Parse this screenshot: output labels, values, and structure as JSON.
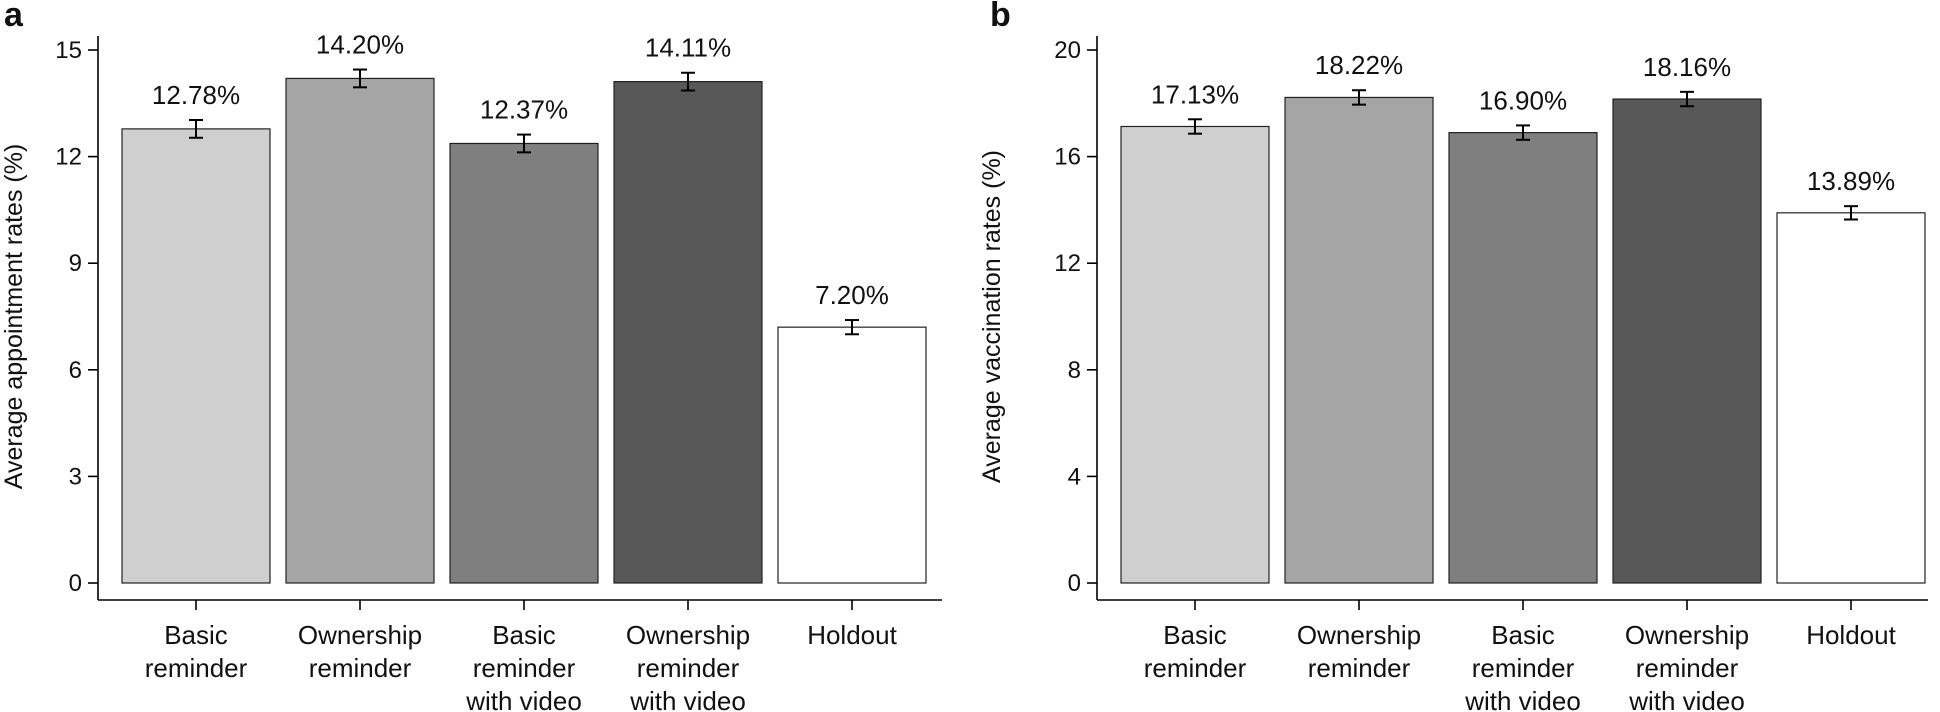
{
  "chart_data": [
    {
      "type": "bar",
      "panel": "a",
      "ylabel": "Average appointment rates (%)",
      "ylim": [
        0,
        15
      ],
      "yticks": [
        0,
        3,
        6,
        9,
        12,
        15
      ],
      "categories": [
        [
          "Basic",
          "reminder"
        ],
        [
          "Ownership",
          "reminder"
        ],
        [
          "Basic",
          "reminder",
          "with video"
        ],
        [
          "Ownership",
          "reminder",
          "with video"
        ],
        [
          "Holdout"
        ]
      ],
      "values": [
        12.78,
        14.2,
        12.37,
        14.11,
        7.2
      ],
      "errors": [
        0.25,
        0.25,
        0.25,
        0.25,
        0.2
      ],
      "value_labels": [
        "12.78%",
        "14.20%",
        "12.37%",
        "14.11%",
        "7.20%"
      ],
      "colors": [
        "#cfcfcf",
        "#a5a5a5",
        "#7f7f7f",
        "#585858",
        "#ffffff"
      ],
      "grid": false
    },
    {
      "type": "bar",
      "panel": "b",
      "ylabel": "Average vaccination rates (%)",
      "ylim": [
        0,
        20
      ],
      "yticks": [
        0,
        4,
        8,
        12,
        16,
        20
      ],
      "categories": [
        [
          "Basic",
          "reminder"
        ],
        [
          "Ownership",
          "reminder"
        ],
        [
          "Basic",
          "reminder",
          "with video"
        ],
        [
          "Ownership",
          "reminder",
          "with video"
        ],
        [
          "Holdout"
        ]
      ],
      "values": [
        17.13,
        18.22,
        16.9,
        18.16,
        13.89
      ],
      "errors": [
        0.27,
        0.27,
        0.27,
        0.27,
        0.25
      ],
      "value_labels": [
        "17.13%",
        "18.22%",
        "16.90%",
        "18.16%",
        "13.89%"
      ],
      "colors": [
        "#cfcfcf",
        "#a5a5a5",
        "#7f7f7f",
        "#585858",
        "#ffffff"
      ],
      "grid": false
    }
  ]
}
